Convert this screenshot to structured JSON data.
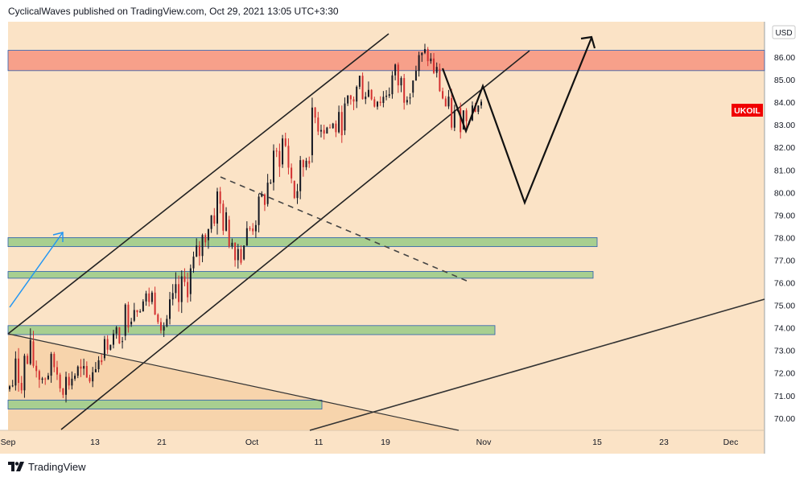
{
  "header": {
    "published_line": "CyclicalWaves published on TradingView.com, Oct 29, 2021 13:05 UTC+3:30"
  },
  "footer": {
    "brand": "TradingView",
    "logo_icon": "tradingview-logo-icon"
  },
  "colors": {
    "background": "#fbe3c6",
    "resistance_zone": "#f7a08a",
    "support_zone": "#a8cf90",
    "bull_candle": "#131722",
    "bear_candle": "#d32f2f",
    "symbol_label": "#f00000",
    "blue_arrow": "#2196f3"
  },
  "chart_data": {
    "type": "candlestick",
    "symbol": "UKOIL",
    "currency": "USD",
    "ylim": [
      69.5,
      87.4
    ],
    "y_ticks": [
      "86.00",
      "85.00",
      "84.00",
      "83.00",
      "82.00",
      "81.00",
      "80.00",
      "79.00",
      "78.00",
      "77.00",
      "76.00",
      "75.00",
      "74.00",
      "73.00",
      "72.00",
      "71.00",
      "70.00"
    ],
    "x_ticks": [
      "Sep",
      "13",
      "21",
      "Oct",
      "11",
      "19",
      "Nov",
      "15",
      "23",
      "Dec"
    ],
    "price_path": [
      [
        72.2,
        70.4
      ],
      [
        73.5,
        71.0
      ],
      [
        73.6,
        71.5
      ],
      [
        72.4,
        71.2
      ],
      [
        73.1,
        71.6
      ],
      [
        72.2,
        70.8
      ],
      [
        72.8,
        71.2
      ],
      [
        72.3,
        70.8
      ],
      [
        73.3,
        72.0
      ],
      [
        73.8,
        73.0
      ],
      [
        74.3,
        73.1
      ],
      [
        76.1,
        74.1
      ],
      [
        75.6,
        74.7
      ],
      [
        76.0,
        74.8
      ],
      [
        74.8,
        73.6
      ],
      [
        75.9,
        73.4
      ],
      [
        76.7,
        75.0
      ],
      [
        77.8,
        76.0
      ],
      [
        79.3,
        77.8
      ],
      [
        80.7,
        78.5
      ],
      [
        78.8,
        77.4
      ],
      [
        78.3,
        76.6
      ],
      [
        79.1,
        77.8
      ],
      [
        80.2,
        78.8
      ],
      [
        81.9,
        80.1
      ],
      [
        83.3,
        81.4
      ],
      [
        80.4,
        79.2
      ],
      [
        82.7,
        80.6
      ],
      [
        84.6,
        82.4
      ],
      [
        83.5,
        82.2
      ],
      [
        83.6,
        82.3
      ],
      [
        84.6,
        83.1
      ],
      [
        85.8,
        84.0
      ],
      [
        85.1,
        83.6
      ],
      [
        84.7,
        83.6
      ],
      [
        86.0,
        84.2
      ],
      [
        85.4,
        83.8
      ],
      [
        86.3,
        84.6
      ],
      [
        86.6,
        85.7
      ],
      [
        85.8,
        84.4
      ],
      [
        84.3,
        82.4
      ],
      [
        83.9,
        82.6
      ],
      [
        84.4,
        83.1
      ],
      [
        84.2,
        83.6
      ]
    ],
    "zones": [
      {
        "kind": "resistance",
        "low": 85.4,
        "high": 86.3
      },
      {
        "kind": "support",
        "low": 77.6,
        "high": 78.0
      },
      {
        "kind": "support",
        "low": 76.2,
        "high": 76.5
      },
      {
        "kind": "support",
        "low": 73.7,
        "high": 74.1
      },
      {
        "kind": "support",
        "low": 70.4,
        "high": 70.8
      }
    ],
    "projection_path": [
      [
        85.0,
        "Oct 26"
      ],
      [
        82.7,
        "Oct 28"
      ],
      [
        84.8,
        "Oct 30"
      ],
      [
        79.6,
        "Nov 6"
      ],
      [
        86.8,
        "Nov 15"
      ]
    ],
    "grid": false,
    "legend": "none"
  }
}
